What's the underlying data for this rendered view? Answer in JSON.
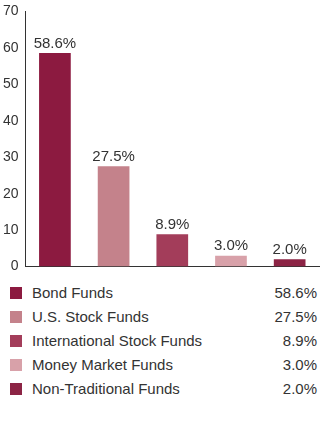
{
  "chart_data": {
    "type": "bar",
    "categories": [
      "Bond Funds",
      "U.S. Stock Funds",
      "International Stock Funds",
      "Money Market Funds",
      "Non-Traditional Funds"
    ],
    "values": [
      58.6,
      27.5,
      8.9,
      3.0,
      2.0
    ],
    "value_labels": [
      "58.6%",
      "27.5%",
      "8.9%",
      "3.0%",
      "2.0%"
    ],
    "colors": [
      "#8c1a40",
      "#c4828b",
      "#a33d5a",
      "#d8a1a9",
      "#8c2445"
    ],
    "ylim": [
      0,
      70
    ],
    "yticks": [
      0,
      10,
      20,
      30,
      40,
      50,
      60,
      70
    ],
    "grid": false,
    "data_labels": true,
    "tick_labels": "y",
    "legend": "bottom"
  }
}
